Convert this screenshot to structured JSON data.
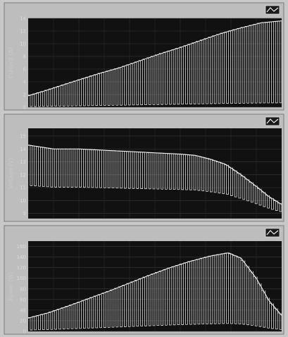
{
  "colors": {
    "background": "#c8c8c8",
    "plot_bg": "#111111",
    "trace": "#dcdcdc",
    "envelope": "#f4f4f4",
    "frame": "#7a7a7a"
  },
  "icons": [
    "waveform-icon",
    "waveform-icon",
    "waveform-icon"
  ],
  "chart_data": [
    {
      "type": "line",
      "ylabel": "Current (A)",
      "yticks": [
        "14",
        "12",
        "10",
        "8",
        "6",
        "4",
        "2",
        "0"
      ],
      "ylim": [
        0,
        14
      ],
      "grid": true,
      "mode_label": "",
      "pulse_count": 62,
      "pulse_depth_fraction": 0.95,
      "envelope": [
        [
          0.0,
          1.8
        ],
        [
          0.06,
          2.5
        ],
        [
          0.13,
          3.4
        ],
        [
          0.2,
          4.3
        ],
        [
          0.28,
          5.3
        ],
        [
          0.36,
          6.2
        ],
        [
          0.44,
          7.3
        ],
        [
          0.52,
          8.4
        ],
        [
          0.6,
          9.4
        ],
        [
          0.68,
          10.5
        ],
        [
          0.76,
          11.6
        ],
        [
          0.84,
          12.5
        ],
        [
          0.92,
          13.3
        ],
        [
          1.0,
          13.6
        ]
      ]
    },
    {
      "type": "line",
      "ylabel": "Voltage (V)",
      "yticks": [
        "15",
        "14",
        "13",
        "12",
        "11",
        "10",
        "9"
      ],
      "ylim": [
        8.6,
        15.6
      ],
      "grid": true,
      "mode_label": "",
      "pulse_count": 62,
      "pulse_depth_fraction": 0.55,
      "envelope": [
        [
          0.0,
          14.3
        ],
        [
          0.1,
          14.0
        ],
        [
          0.2,
          14.0
        ],
        [
          0.3,
          13.9
        ],
        [
          0.4,
          13.8
        ],
        [
          0.5,
          13.7
        ],
        [
          0.6,
          13.6
        ],
        [
          0.66,
          13.5
        ],
        [
          0.72,
          13.2
        ],
        [
          0.78,
          12.8
        ],
        [
          0.84,
          12.0
        ],
        [
          0.9,
          11.1
        ],
        [
          0.95,
          10.3
        ],
        [
          1.0,
          9.7
        ]
      ]
    },
    {
      "type": "line",
      "ylabel": "Power (W)",
      "yticks": [
        "160",
        "140",
        "120",
        "100",
        "80",
        "60",
        "40",
        "20",
        "0"
      ],
      "ylim": [
        0,
        170
      ],
      "grid": true,
      "mode_label": "",
      "pulse_count": 62,
      "pulse_depth_fraction": 0.9,
      "envelope": [
        [
          0.0,
          25
        ],
        [
          0.08,
          35
        ],
        [
          0.16,
          48
        ],
        [
          0.24,
          62
        ],
        [
          0.32,
          76
        ],
        [
          0.4,
          91
        ],
        [
          0.48,
          106
        ],
        [
          0.56,
          120
        ],
        [
          0.64,
          132
        ],
        [
          0.72,
          142
        ],
        [
          0.79,
          148
        ],
        [
          0.84,
          138
        ],
        [
          0.9,
          100
        ],
        [
          0.95,
          58
        ],
        [
          1.0,
          30
        ]
      ]
    }
  ]
}
